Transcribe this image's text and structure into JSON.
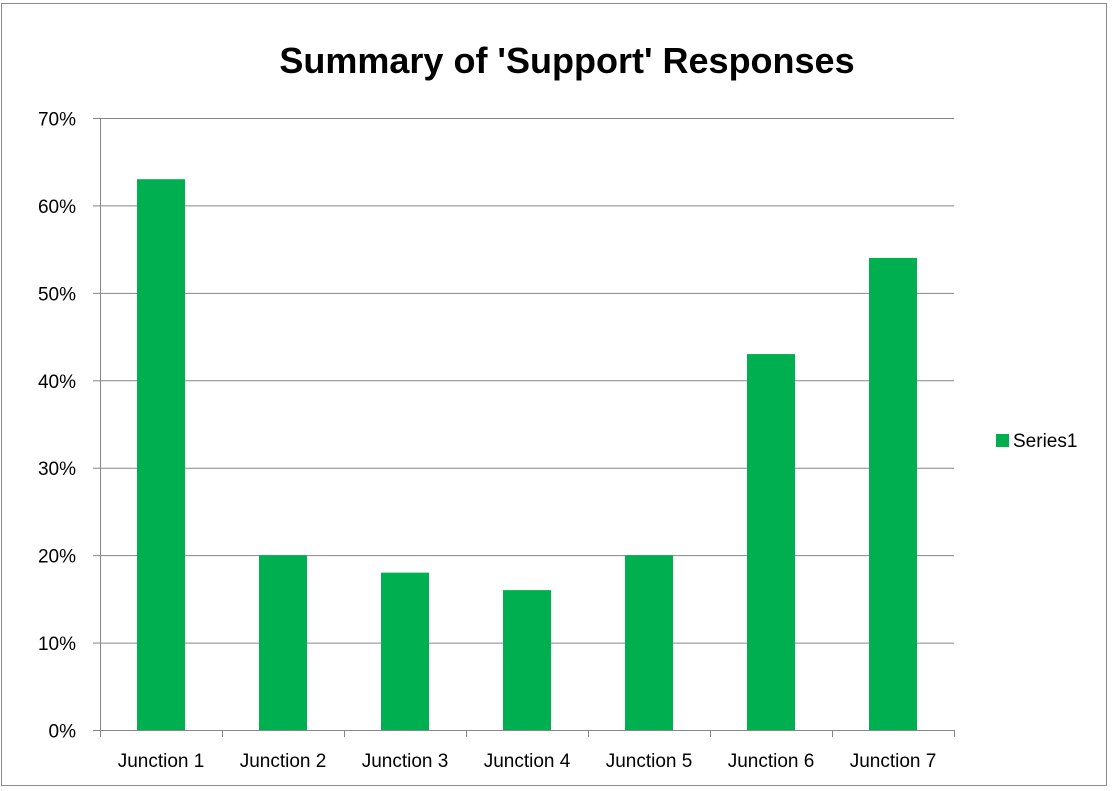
{
  "chart_data": {
    "type": "bar",
    "title": "Summary of 'Support' Responses",
    "xlabel": "",
    "ylabel": "",
    "categories": [
      "Junction 1",
      "Junction 2",
      "Junction 3",
      "Junction 4",
      "Junction 5",
      "Junction 6",
      "Junction 7"
    ],
    "series": [
      {
        "name": "Series1",
        "values": [
          63,
          20,
          18,
          16,
          20,
          43,
          54
        ],
        "color": "#00b050"
      }
    ],
    "ylim": [
      0,
      70
    ],
    "yticks": [
      0,
      10,
      20,
      30,
      40,
      50,
      60,
      70
    ],
    "ytick_labels": [
      "0%",
      "10%",
      "20%",
      "30%",
      "40%",
      "50%",
      "60%",
      "70%"
    ],
    "grid": true,
    "legend": "right",
    "gridline_color": "#868686",
    "axis_color": "#868686"
  }
}
